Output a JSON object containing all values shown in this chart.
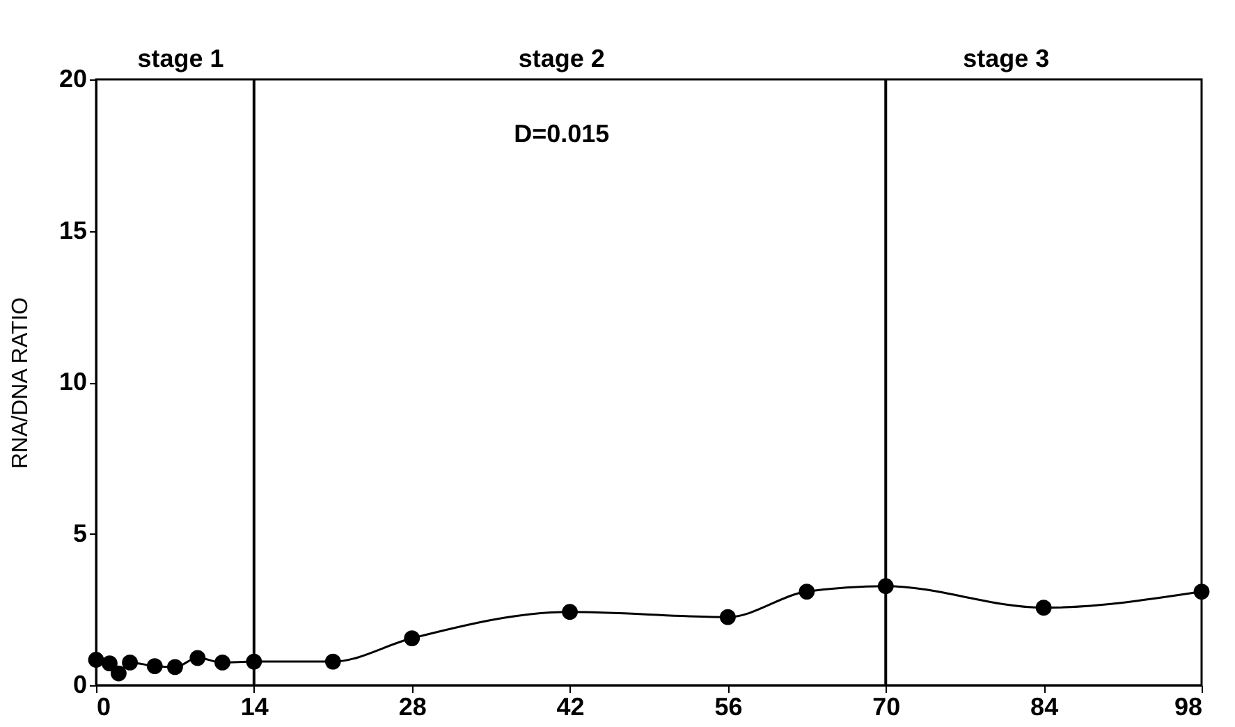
{
  "chart_data": {
    "type": "line",
    "ylabel": "RNA/DNA RATIO",
    "x": [
      0,
      1.2,
      2,
      3,
      5.2,
      7,
      9,
      11.2,
      14,
      21,
      28,
      42,
      56,
      63,
      70,
      84,
      98
    ],
    "series": [
      {
        "color": "#000000",
        "values": [
          0.84,
          0.72,
          0.39,
          0.75,
          0.63,
          0.6,
          0.9,
          0.75,
          0.78,
          0.78,
          1.55,
          2.42,
          2.25,
          3.09,
          3.27,
          2.56,
          3.09
        ]
      }
    ],
    "xlim": [
      0,
      98
    ],
    "ylim": [
      0,
      20
    ],
    "xticks": [
      0,
      14,
      28,
      42,
      56,
      70,
      84,
      98
    ],
    "yticks": [
      0,
      5,
      10,
      15,
      20
    ],
    "ref_lines": [
      {
        "axis": "x",
        "value": 14,
        "color": "#000000"
      },
      {
        "axis": "x",
        "value": 70,
        "color": "#000000"
      }
    ],
    "annotations": [
      "stage 1",
      "stage 2",
      "stage 3",
      "D=0.015"
    ],
    "marker": "circle",
    "line_style": "solid",
    "grid": false
  }
}
